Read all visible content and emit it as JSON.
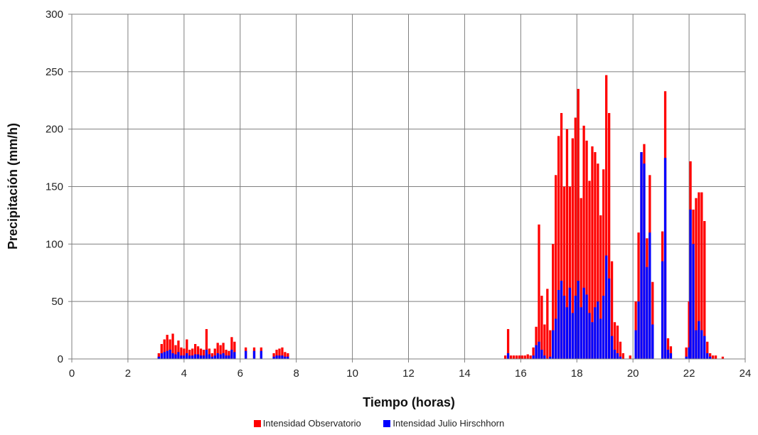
{
  "chart_data": {
    "type": "bar",
    "xlabel": "Tiempo (horas)",
    "ylabel": "Precipitación (mm/h)",
    "xlim": [
      0,
      24
    ],
    "ylim": [
      0,
      300
    ],
    "x_ticks": [
      "0",
      "2",
      "4",
      "6",
      "8",
      "10",
      "12",
      "14",
      "16",
      "18",
      "20",
      "22",
      "24"
    ],
    "y_ticks": [
      "0",
      "50",
      "100",
      "150",
      "200",
      "250",
      "300"
    ],
    "grid": true,
    "legend_position": "bottom",
    "bar_width_hours": 0.0833,
    "series": [
      {
        "name": "Intensidad Observatorio",
        "color": "#ff0000",
        "x": [
          3.1,
          3.2,
          3.3,
          3.4,
          3.5,
          3.6,
          3.7,
          3.8,
          3.9,
          4.0,
          4.1,
          4.2,
          4.3,
          4.4,
          4.5,
          4.6,
          4.7,
          4.8,
          4.9,
          5.0,
          5.1,
          5.2,
          5.3,
          5.4,
          5.5,
          5.6,
          5.7,
          5.8,
          6.2,
          6.5,
          6.75,
          7.2,
          7.3,
          7.4,
          7.5,
          7.6,
          7.7,
          15.45,
          15.55,
          15.65,
          15.75,
          15.85,
          15.95,
          16.05,
          16.15,
          16.25,
          16.35,
          16.45,
          16.55,
          16.65,
          16.75,
          16.85,
          16.95,
          17.05,
          17.15,
          17.25,
          17.35,
          17.45,
          17.55,
          17.65,
          17.75,
          17.85,
          17.95,
          18.05,
          18.15,
          18.25,
          18.35,
          18.45,
          18.55,
          18.65,
          18.75,
          18.85,
          18.95,
          19.05,
          19.15,
          19.25,
          19.35,
          19.45,
          19.55,
          19.65,
          19.9,
          20.1,
          20.2,
          20.3,
          20.4,
          20.5,
          20.6,
          20.7,
          21.05,
          21.15,
          21.25,
          21.35,
          21.9,
          22.0,
          22.05,
          22.15,
          22.25,
          22.35,
          22.45,
          22.55,
          22.65,
          22.75,
          22.85,
          22.95,
          23.2
        ],
        "values": [
          5,
          13,
          17,
          21,
          17,
          22,
          12,
          16,
          10,
          9,
          17,
          8,
          9,
          13,
          11,
          9,
          8,
          26,
          9,
          5,
          9,
          14,
          12,
          14,
          8,
          7,
          19,
          15,
          10,
          10,
          10,
          5,
          8,
          9,
          10,
          6,
          5,
          3,
          26,
          3,
          3,
          3,
          3,
          3,
          3,
          4,
          3,
          10,
          28,
          117,
          55,
          30,
          61,
          25,
          100,
          160,
          194,
          214,
          150,
          200,
          150,
          192,
          210,
          235,
          140,
          203,
          190,
          155,
          185,
          180,
          170,
          125,
          165,
          247,
          214,
          85,
          32,
          29,
          15,
          5,
          3,
          50,
          110,
          180,
          187,
          105,
          160,
          67,
          111,
          233,
          18,
          11,
          10,
          50,
          172,
          130,
          140,
          145,
          145,
          120,
          15,
          5,
          3,
          3,
          2
        ]
      },
      {
        "name": "Intensidad Julio Hirschhorn",
        "color": "#0000ff",
        "x": [
          3.1,
          3.2,
          3.3,
          3.4,
          3.5,
          3.6,
          3.7,
          3.8,
          3.9,
          4.0,
          4.1,
          4.2,
          4.3,
          4.4,
          4.5,
          4.6,
          4.7,
          4.8,
          4.9,
          5.0,
          5.1,
          5.2,
          5.3,
          5.4,
          5.5,
          5.6,
          5.7,
          5.8,
          6.2,
          6.5,
          6.75,
          7.2,
          7.3,
          7.4,
          7.5,
          7.6,
          7.7,
          15.45,
          15.55,
          15.65,
          15.75,
          15.85,
          15.95,
          16.05,
          16.15,
          16.25,
          16.35,
          16.45,
          16.55,
          16.65,
          16.75,
          16.85,
          16.95,
          17.05,
          17.15,
          17.25,
          17.35,
          17.45,
          17.55,
          17.65,
          17.75,
          17.85,
          17.95,
          18.05,
          18.15,
          18.25,
          18.35,
          18.45,
          18.55,
          18.65,
          18.75,
          18.85,
          18.95,
          19.05,
          19.15,
          19.25,
          19.35,
          19.45,
          19.55,
          19.65,
          19.9,
          20.1,
          20.2,
          20.3,
          20.4,
          20.5,
          20.6,
          20.7,
          21.05,
          21.15,
          21.25,
          21.35,
          21.9,
          22.0,
          22.05,
          22.15,
          22.25,
          22.35,
          22.45,
          22.55,
          22.65,
          22.75,
          22.85,
          22.95,
          23.2
        ],
        "values": [
          2,
          5,
          6,
          7,
          8,
          5,
          4,
          6,
          3,
          3,
          5,
          3,
          3,
          4,
          4,
          3,
          3,
          8,
          4,
          2,
          3,
          5,
          4,
          5,
          3,
          3,
          8,
          6,
          7,
          7,
          7,
          2,
          3,
          3,
          3,
          2,
          2,
          0,
          5,
          0,
          0,
          0,
          0,
          0,
          0,
          0,
          0,
          3,
          12,
          15,
          8,
          3,
          0,
          2,
          25,
          35,
          60,
          68,
          55,
          45,
          62,
          40,
          55,
          68,
          45,
          62,
          56,
          40,
          32,
          45,
          50,
          35,
          55,
          90,
          70,
          20,
          8,
          5,
          2,
          0,
          0,
          25,
          50,
          180,
          170,
          80,
          110,
          30,
          85,
          175,
          8,
          5,
          2,
          10,
          130,
          100,
          25,
          33,
          25,
          20,
          5,
          2,
          0,
          0,
          0
        ]
      }
    ]
  }
}
